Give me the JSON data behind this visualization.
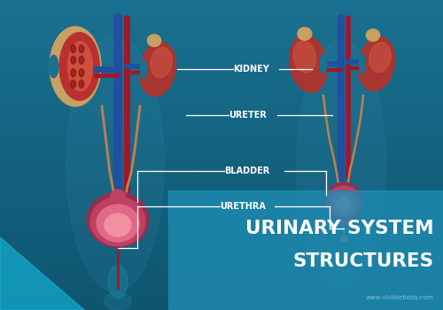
{
  "bg_color": "#1a7090",
  "bg_color_bottom": "#0e5570",
  "title_line1": "URINARY SYSTEM",
  "title_line2": "STRUCTURES",
  "title_color": "#ffffff",
  "title_bg_color": "#2090b8",
  "watermark": "www.visiblebody.com",
  "watermark_color": "#90c8d8",
  "label_color": "#ffffff",
  "line_color": "#ffffff",
  "kidney_dark": "#8b2020",
  "kidney_mid": "#b84030",
  "kidney_light": "#d06050",
  "kidney_inner_light": "#e8a080",
  "ureter_color": "#c08050",
  "vessel_blue": "#2050a0",
  "vessel_red": "#a01828",
  "bladder_outer": "#c04060",
  "bladder_inner": "#e06888",
  "bladder_inner2": "#f090a0",
  "body_teal": "#3090b0",
  "triangle_color": "#12a0cc",
  "lw_line": 0.9,
  "label_fontsize": 7.0,
  "title_fontsize1": 15.5,
  "title_fontsize2": 15.5
}
